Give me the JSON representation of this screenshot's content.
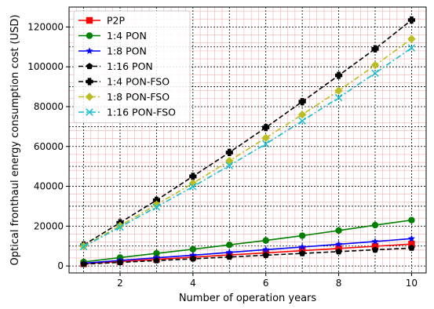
{
  "chart_data": {
    "type": "line",
    "title": "",
    "xlabel": "Number of operation years",
    "ylabel": "Optical fronthaul energy consumption cost (USD)",
    "xlim": [
      0.6,
      10.4
    ],
    "ylim": [
      -3500,
      130000
    ],
    "x": [
      1,
      2,
      3,
      4,
      5,
      6,
      7,
      8,
      9,
      10
    ],
    "xticks": [
      2,
      4,
      6,
      8,
      10
    ],
    "xtick_labels": [
      "2",
      "4",
      "6",
      "8",
      "10"
    ],
    "yticks": [
      0,
      20000,
      40000,
      60000,
      80000,
      100000,
      120000
    ],
    "ytick_labels": [
      "0",
      "20000",
      "40000",
      "60000",
      "80000",
      "100000",
      "120000"
    ],
    "grid": true,
    "legend_position": "top-left",
    "series": [
      {
        "name": "P2P",
        "color": "#ff0000",
        "marker": "square",
        "dash": "solid",
        "values": [
          1100,
          2200,
          3300,
          4400,
          5500,
          6600,
          7700,
          8800,
          9900,
          11000
        ]
      },
      {
        "name": "1:4 PON",
        "color": "#008000",
        "marker": "circle",
        "dash": "solid",
        "values": [
          2000,
          4200,
          6300,
          8400,
          10600,
          12800,
          15200,
          17800,
          20500,
          23000
        ]
      },
      {
        "name": "1:8 PON",
        "color": "#0000ff",
        "marker": "star",
        "dash": "solid",
        "values": [
          1400,
          2800,
          4100,
          5400,
          6800,
          8200,
          9500,
          10900,
          12300,
          13700
        ]
      },
      {
        "name": "1:16 PON",
        "color": "#000000",
        "marker": "pentagon",
        "dash": "dashed",
        "values": [
          900,
          1800,
          2700,
          3600,
          4500,
          5400,
          6300,
          7200,
          8100,
          9000
        ]
      },
      {
        "name": "1:4 PON-FSO",
        "color": "#000000",
        "marker": "plus",
        "dash": "dashed",
        "values": [
          10500,
          21700,
          33000,
          45000,
          57000,
          69500,
          82500,
          95700,
          109000,
          123500
        ]
      },
      {
        "name": "1:8 PON-FSO",
        "color": "#bcbd22",
        "marker": "diamond",
        "dash": "dashdot",
        "values": [
          10000,
          20200,
          30800,
          41500,
          52800,
          64300,
          76000,
          88000,
          100800,
          114000
        ]
      },
      {
        "name": "1:16 PON-FSO",
        "color": "#17becf",
        "marker": "x",
        "dash": "dashdot",
        "values": [
          9700,
          19500,
          29600,
          39800,
          50400,
          61300,
          72800,
          84500,
          96800,
          109500
        ]
      }
    ]
  }
}
